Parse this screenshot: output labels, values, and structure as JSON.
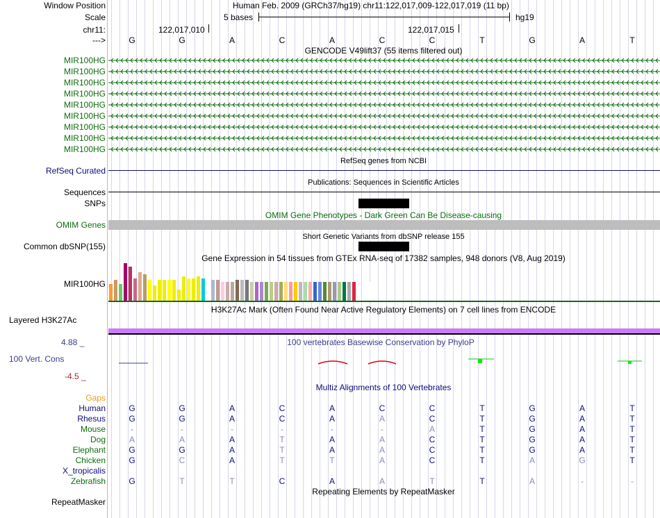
{
  "header": {
    "window_position_label": "Window Position",
    "window_position_value": "Human Feb. 2009 (GRCh37/hg19)   chr11:122,017,009-122,017,019 (11 bp)",
    "scale_label": "Scale",
    "scale_value": "5 bases",
    "scale_assembly": "hg19",
    "chrom_label": "chr11:",
    "coord_1": "122,017,010",
    "coord_2": "122,017,015",
    "strand_label": "--->"
  },
  "bases": [
    "G",
    "G",
    "A",
    "C",
    "A",
    "C",
    "C",
    "T",
    "G",
    "A",
    "T"
  ],
  "gencode": {
    "title": "GENCODE V49lift37 (55 items filtered out)",
    "rows": [
      "MIR100HG",
      "MIR100HG",
      "MIR100HG",
      "MIR100HG",
      "MIR100HG",
      "MIR100HG",
      "MIR100HG",
      "MIR100HG",
      "MIR100HG"
    ]
  },
  "refseq": {
    "title": "RefSeq genes from NCBI",
    "label": "RefSeq Curated"
  },
  "publications": {
    "title": "Publications: Sequences in Scientific Articles",
    "label": "Sequences"
  },
  "snps": {
    "label": "SNPs"
  },
  "omim": {
    "title": "OMIM Gene Phenotypes - Dark Green Can Be Disease-causing",
    "label": "OMIM Genes"
  },
  "dbsnp": {
    "title": "Short Genetic Variants from dbSNP release 155",
    "label": "Common dbSNP(155)"
  },
  "gtex": {
    "title": "Gene Expression in 54 tissues from GTEx RNA-seq of 17382 samples, 948 donors (V8, Aug 2019)",
    "label": "MIR100HG",
    "bar_levels": [
      0.45,
      0.55,
      0.45,
      1.0,
      0.9,
      0.6,
      0.75,
      0.7,
      0.55,
      0.4,
      0.55,
      0.55,
      0.55,
      0.55,
      0.3,
      0.65,
      0.6,
      0.6,
      0.65,
      0.6,
      0.55,
      0.55,
      0.55,
      0.5,
      0.5,
      0.5,
      0.55,
      0.55,
      0.55,
      0.5,
      0.5,
      0.5,
      0.5,
      0.5,
      0.5,
      0.5,
      0.5,
      0.5,
      0.5,
      0.5,
      0.5,
      0.5,
      0.5,
      0.5,
      0.5,
      0.5,
      0.5,
      0.5,
      0.5,
      0.5,
      0.5,
      0.5,
      0.5,
      0.5
    ],
    "bar_colors": [
      "#ff9933",
      "#cc9966",
      "#66cc66",
      "#aa0066",
      "#bb3355",
      "#cc6688",
      "#ddaa88",
      "#bb9966",
      "#ffff00",
      "#eeee00",
      "#eeee00",
      "#eeee00",
      "#ffff00",
      "#eeee00",
      "#eeee00",
      "#eeee00",
      "#ffff00",
      "#eeee00",
      "#eeee00",
      "#00ccdd",
      "#ffffff",
      "#aabbcc",
      "#bb9999",
      "#ffccdd",
      "#ccaaaa",
      "#bbaa99",
      "#886655",
      "#bbbbbb",
      "#777777",
      "#ccccaa",
      "#aa66cc",
      "#aa88cc",
      "#77aa55",
      "#bbcc88",
      "#ccaaaa",
      "#aaaa55",
      "#ffdd77",
      "#ff9999",
      "#ffcc00",
      "#bbbbbb",
      "#aaddaa",
      "#ffaaaa",
      "#3366cc",
      "#6688dd",
      "#558833",
      "#aa9977",
      "#9999aa",
      "#aacc88",
      "#007744",
      "#aaaaaa",
      "#dd2244",
      "#ffffff",
      "#ffffff",
      "#ffffff"
    ]
  },
  "h3k27ac": {
    "title": "H3K27Ac Mark (Often Found Near Active Regulatory Elements) on 7 cell lines from ENCODE",
    "label": "Layered H3K27Ac"
  },
  "cons": {
    "title": "100 vertebrates Basewise Conservation by PhyloP",
    "label": "100 Vert. Cons",
    "max": "4.88 _",
    "min": "-4.5 _"
  },
  "multiz": {
    "title": "Multiz Alignments of 100 Vertebrates",
    "gaps_label": "Gaps",
    "species": [
      {
        "name": "Human",
        "bases": [
          "G",
          "G",
          "A",
          "C",
          "A",
          "C",
          "C",
          "T",
          "G",
          "A",
          "T"
        ],
        "dim": [
          0,
          0,
          0,
          0,
          0,
          0,
          0,
          0,
          0,
          0,
          0
        ]
      },
      {
        "name": "Rhesus",
        "bases": [
          "G",
          "G",
          "A",
          "C",
          "A",
          "A",
          "C",
          "T",
          "G",
          "A",
          "T"
        ],
        "dim": [
          0,
          0,
          0,
          0,
          0,
          1,
          0,
          0,
          0,
          0,
          0
        ]
      },
      {
        "name": "Mouse",
        "bases": [
          "-",
          "-",
          "-",
          "-",
          "-",
          "-",
          "A",
          "T",
          "G",
          "A",
          "T"
        ],
        "dim": [
          1,
          1,
          1,
          1,
          1,
          1,
          1,
          0,
          0,
          0,
          0
        ]
      },
      {
        "name": "Dog",
        "bases": [
          "A",
          "A",
          "A",
          "T",
          "A",
          "A",
          "C",
          "T",
          "G",
          "A",
          "T"
        ],
        "dim": [
          1,
          1,
          0,
          1,
          0,
          1,
          0,
          0,
          0,
          0,
          0
        ]
      },
      {
        "name": "Elephant",
        "bases": [
          "G",
          "G",
          "A",
          "T",
          "A",
          "A",
          "C",
          "T",
          "G",
          "A",
          "T"
        ],
        "dim": [
          0,
          0,
          0,
          1,
          0,
          1,
          0,
          0,
          0,
          0,
          0
        ]
      },
      {
        "name": "Chicken",
        "bases": [
          "G",
          "C",
          "A",
          "T",
          "T",
          "A",
          "C",
          "T",
          "A",
          "G",
          "T"
        ],
        "dim": [
          0,
          1,
          0,
          1,
          1,
          1,
          0,
          0,
          1,
          1,
          0
        ]
      },
      {
        "name": "X_tropicalis",
        "bases": [
          "",
          "",
          "",
          "",
          "",
          "",
          "",
          "",
          "",
          "",
          ""
        ],
        "dim": [
          0,
          0,
          0,
          0,
          0,
          0,
          0,
          0,
          0,
          0,
          0
        ]
      },
      {
        "name": "Zebrafish",
        "bases": [
          "G",
          "T",
          "T",
          "C",
          "A",
          "A",
          "T",
          "T",
          "A",
          "-",
          "-"
        ],
        "dim": [
          0,
          1,
          1,
          0,
          0,
          1,
          1,
          0,
          1,
          1,
          1
        ]
      }
    ]
  },
  "repeatmasker": {
    "title": "Repeating Elements by RepeatMasker",
    "label": "RepeatMasker"
  },
  "colors": {
    "gene_green": "#0c6d0c",
    "navy": "#0c0c78",
    "omim_gray": "#bdbdbd",
    "h3k27_purple": "#c97cf5",
    "cons_blue": "#3c3c8c",
    "cons_red": "#a52a2a"
  }
}
